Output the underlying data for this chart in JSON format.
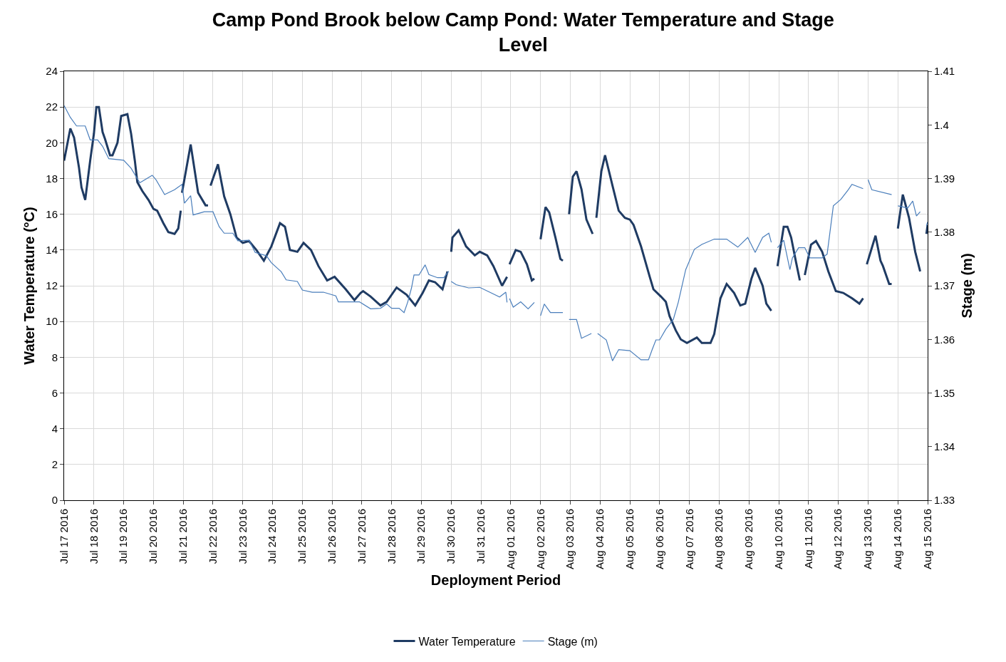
{
  "chart_data": {
    "type": "line",
    "title": "Camp Pond Brook below Camp Pond: Water Temperature and Stage Level",
    "xlabel": "Deployment Period",
    "ylabel": "Water Temperature (°C)",
    "y2label": "Stage (m)",
    "xlim": [
      "2016-07-17",
      "2016-08-15"
    ],
    "xticks": [
      {
        "value": "2016-07-17",
        "label": "Jul 17 2016"
      },
      {
        "value": "2016-07-18",
        "label": "Jul 18 2016"
      },
      {
        "value": "2016-07-19",
        "label": "Jul 19 2016"
      },
      {
        "value": "2016-07-20",
        "label": "Jul 20 2016"
      },
      {
        "value": "2016-07-21",
        "label": "Jul 21 2016"
      },
      {
        "value": "2016-07-22",
        "label": "Jul 22 2016"
      },
      {
        "value": "2016-07-23",
        "label": "Jul 23 2016"
      },
      {
        "value": "2016-07-24",
        "label": "Jul 24 2016"
      },
      {
        "value": "2016-07-25",
        "label": "Jul 25 2016"
      },
      {
        "value": "2016-07-26",
        "label": "Jul 26 2016"
      },
      {
        "value": "2016-07-27",
        "label": "Jul 27 2016"
      },
      {
        "value": "2016-07-28",
        "label": "Jul 28 2016"
      },
      {
        "value": "2016-07-29",
        "label": "Jul 29 2016"
      },
      {
        "value": "2016-07-30",
        "label": "Jul 30 2016"
      },
      {
        "value": "2016-07-31",
        "label": "Jul 31 2016"
      },
      {
        "value": "2016-08-01",
        "label": "Aug 01 2016"
      },
      {
        "value": "2016-08-02",
        "label": "Aug 02 2016"
      },
      {
        "value": "2016-08-03",
        "label": "Aug 03 2016"
      },
      {
        "value": "2016-08-04",
        "label": "Aug 04 2016"
      },
      {
        "value": "2016-08-05",
        "label": "Aug 05 2016"
      },
      {
        "value": "2016-08-06",
        "label": "Aug 06 2016"
      },
      {
        "value": "2016-08-07",
        "label": "Aug 07 2016"
      },
      {
        "value": "2016-08-08",
        "label": "Aug 08 2016"
      },
      {
        "value": "2016-08-09",
        "label": "Aug 09 2016"
      },
      {
        "value": "2016-08-10",
        "label": "Aug 10 2016"
      },
      {
        "value": "2016-08-11",
        "label": "Aug 11 2016"
      },
      {
        "value": "2016-08-12",
        "label": "Aug 12 2016"
      },
      {
        "value": "2016-08-13",
        "label": "Aug 13 2016"
      },
      {
        "value": "2016-08-14",
        "label": "Aug 14 2016"
      },
      {
        "value": "2016-08-15",
        "label": "Aug 15 2016"
      }
    ],
    "ylim": [
      0,
      24
    ],
    "yticks": [
      0,
      2,
      4,
      6,
      8,
      10,
      12,
      14,
      16,
      18,
      20,
      22,
      24
    ],
    "y2lim": [
      1.33,
      1.41
    ],
    "y2ticks": [
      1.33,
      1.34,
      1.35,
      1.36,
      1.37,
      1.38,
      1.39,
      1.4,
      1.41
    ],
    "grid": true,
    "legend": "bottom",
    "series": [
      {
        "name": "Water Temperature",
        "color": "#1f3b63",
        "x": [
          "2016-07-17T00:00",
          "2016-07-17T05:00",
          "2016-07-17T08:00",
          "2016-07-17T12:00",
          "2016-07-17T14:00",
          "2016-07-17T17:00",
          "2016-07-17T21:00",
          "2016-07-18T00:00",
          "2016-07-18T02:00",
          "2016-07-18T04:00",
          "2016-07-18T07:00",
          "2016-07-18T09:00",
          "2016-07-18T13:00",
          "2016-07-18T15:00",
          "2016-07-18T19:00",
          "2016-07-18T22:00",
          "2016-07-19T03:00",
          "2016-07-19T06:00",
          "2016-07-19T09:00",
          "2016-07-19T11:00",
          "2016-07-19T15:00",
          "2016-07-19T20:00",
          "2016-07-20T00:00",
          "2016-07-20T03:00",
          "2016-07-20T08:00",
          "2016-07-20T12:00",
          "2016-07-20T17:00",
          "2016-07-20T20:00",
          "2016-07-20T22:00",
          "2016-07-20T22:30",
          "2016-07-20T23:00",
          "2016-07-21T06:00",
          "2016-07-21T12:00",
          "2016-07-21T18:00",
          "2016-07-21T20:00",
          "2016-07-21T21:00",
          "2016-07-21T22:00",
          "2016-07-22T04:00",
          "2016-07-22T09:00",
          "2016-07-22T14:00",
          "2016-07-22T19:00",
          "2016-07-23T00:00",
          "2016-07-23T05:00",
          "2016-07-23T11:00",
          "2016-07-23T17:00",
          "2016-07-23T23:00",
          "2016-07-24T06:00",
          "2016-07-24T10:00",
          "2016-07-24T14:00",
          "2016-07-24T20:00",
          "2016-07-25T01:00",
          "2016-07-25T07:00",
          "2016-07-25T13:00",
          "2016-07-25T20:00",
          "2016-07-26T02:00",
          "2016-07-26T11:00",
          "2016-07-26T18:00",
          "2016-07-26T23:00",
          "2016-07-27T01:00",
          "2016-07-27T07:00",
          "2016-07-27T15:00",
          "2016-07-27T20:00",
          "2016-07-28T04:00",
          "2016-07-28T12:00",
          "2016-07-28T19:00",
          "2016-07-29T01:00",
          "2016-07-29T06:00",
          "2016-07-29T11:00",
          "2016-07-29T17:00",
          "2016-07-29T21:00",
          "2016-07-29T22:00",
          "2016-07-30T00:00",
          "2016-07-30T01:00",
          "2016-07-30T06:00",
          "2016-07-30T12:00",
          "2016-07-30T19:00",
          "2016-07-30T23:00",
          "2016-07-31T05:00",
          "2016-07-31T10:00",
          "2016-07-31T17:00",
          "2016-07-31T21:00",
          "2016-07-31T22:00",
          "2016-07-31T23:00",
          "2016-08-01T04:00",
          "2016-08-01T08:00",
          "2016-08-01T13:00",
          "2016-08-01T17:00",
          "2016-08-01T19:00",
          "2016-08-01T21:00",
          "2016-08-02T00:00",
          "2016-08-02T04:00",
          "2016-08-02T07:00",
          "2016-08-02T12:00",
          "2016-08-02T16:00",
          "2016-08-02T18:00",
          "2016-08-02T20:00",
          "2016-08-02T23:00",
          "2016-08-03T02:00",
          "2016-08-03T05:00",
          "2016-08-03T09:00",
          "2016-08-03T13:00",
          "2016-08-03T18:00",
          "2016-08-03T19:00",
          "2016-08-03T21:00",
          "2016-08-04T01:00",
          "2016-08-04T04:00",
          "2016-08-04T10:00",
          "2016-08-04T15:00",
          "2016-08-04T20:00",
          "2016-08-05T00:00",
          "2016-08-05T03:00",
          "2016-08-05T09:00",
          "2016-08-05T16:00",
          "2016-08-05T19:00",
          "2016-08-06T01:00",
          "2016-08-06T05:00",
          "2016-08-06T08:00",
          "2016-08-06T13:00",
          "2016-08-06T17:00",
          "2016-08-06T22:00",
          "2016-08-07T06:00",
          "2016-08-07T10:00",
          "2016-08-07T17:00",
          "2016-08-07T20:00",
          "2016-08-08T01:00",
          "2016-08-08T06:00",
          "2016-08-08T12:00",
          "2016-08-08T17:00",
          "2016-08-08T21:00",
          "2016-08-09T02:00",
          "2016-08-09T05:00",
          "2016-08-09T11:00",
          "2016-08-09T14:00",
          "2016-08-09T18:00",
          "2016-08-09T20:00",
          "2016-08-09T23:00",
          "2016-08-10T04:00",
          "2016-08-10T07:00",
          "2016-08-10T10:00",
          "2016-08-10T14:00",
          "2016-08-10T17:00",
          "2016-08-10T18:00",
          "2016-08-10T21:00",
          "2016-08-11T02:00",
          "2016-08-11T06:00",
          "2016-08-11T11:00",
          "2016-08-11T16:00",
          "2016-08-11T22:00",
          "2016-08-12T04:00",
          "2016-08-12T11:00",
          "2016-08-12T17:00",
          "2016-08-12T20:00",
          "2016-08-12T21:00",
          "2016-08-12T23:00",
          "2016-08-13T06:00",
          "2016-08-13T10:00",
          "2016-08-13T12:00",
          "2016-08-13T17:00",
          "2016-08-13T19:00",
          "2016-08-13T21:00",
          "2016-08-14T00:00",
          "2016-08-14T04:00",
          "2016-08-14T09:00",
          "2016-08-14T14:00",
          "2016-08-14T18:00",
          "2016-08-14T20:00",
          "2016-08-14T23:00",
          "2016-08-15T00:00"
        ],
        "values": [
          19.0,
          20.8,
          20.3,
          18.6,
          17.5,
          16.8,
          19.0,
          20.5,
          22.0,
          22.0,
          20.6,
          20.2,
          19.3,
          19.3,
          20.0,
          21.5,
          21.6,
          20.5,
          19.0,
          17.8,
          17.3,
          16.8,
          16.3,
          16.2,
          15.5,
          15.0,
          14.9,
          15.2,
          16.2,
          null,
          17.2,
          19.9,
          17.2,
          16.5,
          16.5,
          null,
          17.6,
          18.8,
          17.0,
          16.0,
          14.7,
          14.4,
          14.5,
          14.0,
          13.4,
          14.2,
          15.5,
          15.3,
          14.0,
          13.9,
          14.4,
          14.0,
          13.1,
          12.3,
          12.5,
          11.8,
          11.2,
          11.6,
          11.7,
          11.4,
          10.9,
          11.1,
          11.9,
          11.5,
          10.9,
          11.6,
          12.3,
          12.2,
          11.8,
          12.8,
          null,
          13.9,
          14.7,
          15.1,
          14.2,
          13.7,
          13.9,
          13.7,
          13.1,
          12.0,
          12.5,
          null,
          13.2,
          14.0,
          13.9,
          13.2,
          12.3,
          12.4,
          null,
          14.6,
          16.4,
          16.1,
          14.7,
          13.5,
          13.4,
          null,
          16.0,
          18.1,
          18.4,
          17.4,
          15.7,
          14.9,
          null,
          15.8,
          18.4,
          19.3,
          17.6,
          16.2,
          15.8,
          15.7,
          15.4,
          14.2,
          12.5,
          11.8,
          11.4,
          11.1,
          10.3,
          9.5,
          9.0,
          8.8,
          9.1,
          8.8,
          8.8,
          9.3,
          11.3,
          12.1,
          11.6,
          10.9,
          11.0,
          12.4,
          13.0,
          12.0,
          11.0,
          10.6,
          null,
          13.1,
          15.3,
          15.3,
          14.7,
          13.3,
          12.3,
          null,
          12.6,
          14.3,
          14.5,
          13.9,
          12.8,
          11.7,
          11.6,
          11.3,
          11.0,
          11.3,
          null,
          13.2,
          14.8,
          13.4,
          13.1,
          12.1,
          12.1,
          null,
          15.2,
          17.1,
          15.8,
          13.9,
          12.8,
          null,
          14.9,
          15.4
        ]
      },
      {
        "name": "Stage (m)",
        "color": "#4a7ebb",
        "axis": "y2",
        "x": [
          "2016-07-17T00:00",
          "2016-07-17T05:00",
          "2016-07-17T10:00",
          "2016-07-17T17:00",
          "2016-07-17T21:00",
          "2016-07-18T03:00",
          "2016-07-18T07:00",
          "2016-07-18T12:00",
          "2016-07-19T00:00",
          "2016-07-19T06:00",
          "2016-07-19T13:00",
          "2016-07-19T23:00",
          "2016-07-20T02:00",
          "2016-07-20T09:00",
          "2016-07-20T17:00",
          "2016-07-20T23:00",
          "2016-07-21T01:00",
          "2016-07-21T06:00",
          "2016-07-21T08:00",
          "2016-07-21T17:00",
          "2016-07-22T00:00",
          "2016-07-22T05:00",
          "2016-07-22T09:00",
          "2016-07-22T16:00",
          "2016-07-22T20:00",
          "2016-07-23T05:00",
          "2016-07-23T10:00",
          "2016-07-23T19:00",
          "2016-07-23T23:00",
          "2016-07-24T07:00",
          "2016-07-24T11:00",
          "2016-07-24T20:00",
          "2016-07-25T00:00",
          "2016-07-25T08:00",
          "2016-07-25T17:00",
          "2016-07-26T03:00",
          "2016-07-26T05:00",
          "2016-07-26T22:00",
          "2016-07-27T07:00",
          "2016-07-27T15:00",
          "2016-07-27T20:00",
          "2016-07-28T00:00",
          "2016-07-28T06:00",
          "2016-07-28T10:00",
          "2016-07-28T13:00",
          "2016-07-28T16:00",
          "2016-07-28T18:00",
          "2016-07-28T22:00",
          "2016-07-29T03:00",
          "2016-07-29T06:00",
          "2016-07-29T13:00",
          "2016-07-29T18:00",
          "2016-07-29T22:00",
          "2016-07-29T23:00",
          "2016-07-30T00:00",
          "2016-07-30T04:00",
          "2016-07-30T14:00",
          "2016-07-30T23:00",
          "2016-07-31T07:00",
          "2016-07-31T15:00",
          "2016-07-31T20:00",
          "2016-07-31T21:00",
          "2016-07-31T22:00",
          "2016-07-31T23:00",
          "2016-08-01T02:00",
          "2016-08-01T08:00",
          "2016-08-01T14:00",
          "2016-08-01T19:00",
          "2016-08-01T21:00",
          "2016-08-02T00:00",
          "2016-08-02T03:00",
          "2016-08-02T08:00",
          "2016-08-02T18:00",
          "2016-08-02T20:00",
          "2016-08-02T23:00",
          "2016-08-03T05:00",
          "2016-08-03T09:00",
          "2016-08-03T17:00",
          "2016-08-03T19:00",
          "2016-08-03T22:00",
          "2016-08-04T05:00",
          "2016-08-04T10:00",
          "2016-08-04T15:00",
          "2016-08-05T00:00",
          "2016-08-05T09:00",
          "2016-08-05T15:00",
          "2016-08-05T18:00",
          "2016-08-05T21:00",
          "2016-08-06T00:00",
          "2016-08-06T05:00",
          "2016-08-06T11:00",
          "2016-08-06T15:00",
          "2016-08-06T21:00",
          "2016-08-07T04:00",
          "2016-08-07T10:00",
          "2016-08-07T20:00",
          "2016-08-08T06:00",
          "2016-08-08T15:00",
          "2016-08-08T23:00",
          "2016-08-09T05:00",
          "2016-08-09T11:00",
          "2016-08-09T16:00",
          "2016-08-09T18:00",
          "2016-08-09T20:00",
          "2016-08-09T23:00",
          "2016-08-10T04:00",
          "2016-08-10T09:00",
          "2016-08-10T11:00",
          "2016-08-10T16:00",
          "2016-08-10T21:00",
          "2016-08-11T01:00",
          "2016-08-11T11:00",
          "2016-08-11T15:00",
          "2016-08-11T20:00",
          "2016-08-12T02:00",
          "2016-08-12T08:00",
          "2016-08-12T11:00",
          "2016-08-12T20:00",
          "2016-08-12T21:00",
          "2016-08-13T00:00",
          "2016-08-13T03:00",
          "2016-08-13T19:00",
          "2016-08-13T21:00",
          "2016-08-14T00:00",
          "2016-08-14T08:00",
          "2016-08-14T12:00",
          "2016-08-14T15:00",
          "2016-08-14T18:00",
          "2016-08-14T20:00",
          "2016-08-14T23:00",
          "2016-08-15T00:00"
        ],
        "values": [
          1.4036,
          1.4014,
          1.3998,
          1.3998,
          1.3972,
          1.3972,
          1.396,
          1.3937,
          1.3934,
          1.3919,
          1.3892,
          1.3906,
          1.3898,
          1.387,
          1.3879,
          1.3889,
          1.3854,
          1.3868,
          1.3832,
          1.3838,
          1.3838,
          1.381,
          1.3798,
          1.3798,
          1.3784,
          1.3785,
          1.3762,
          1.3756,
          1.3743,
          1.3726,
          1.3711,
          1.3708,
          1.3692,
          1.3688,
          1.3688,
          1.3681,
          1.367,
          1.367,
          1.3657,
          1.3658,
          1.3666,
          1.3658,
          1.3658,
          1.365,
          1.367,
          1.3696,
          1.372,
          1.372,
          1.3739,
          1.3721,
          1.3715,
          1.3715,
          1.3727,
          null,
          1.3708,
          1.3702,
          1.3696,
          1.3697,
          1.3688,
          1.3679,
          1.3688,
          1.3669,
          null,
          1.3676,
          1.366,
          1.367,
          1.3657,
          1.3669,
          null,
          1.3644,
          1.3666,
          1.365,
          1.365,
          null,
          1.3637,
          1.3637,
          1.3602,
          1.3611,
          null,
          1.3611,
          1.3599,
          1.356,
          1.3581,
          1.3579,
          1.3562,
          1.3562,
          1.3581,
          1.3599,
          1.3599,
          1.3619,
          1.3637,
          1.3669,
          1.373,
          1.3768,
          1.3777,
          1.3787,
          1.3787,
          1.3772,
          1.379,
          1.3762,
          1.379,
          1.3798,
          1.3781,
          null,
          1.3771,
          1.3785,
          1.373,
          1.3752,
          1.3771,
          1.3771,
          1.3752,
          1.3752,
          1.3759,
          1.3849,
          1.3861,
          1.3879,
          1.3889,
          1.3881,
          null,
          1.3898,
          1.3879,
          1.387,
          null,
          1.3849,
          1.3845,
          1.3858,
          1.383,
          1.3838,
          null,
          1.3812,
          1.3819
        ]
      }
    ]
  }
}
